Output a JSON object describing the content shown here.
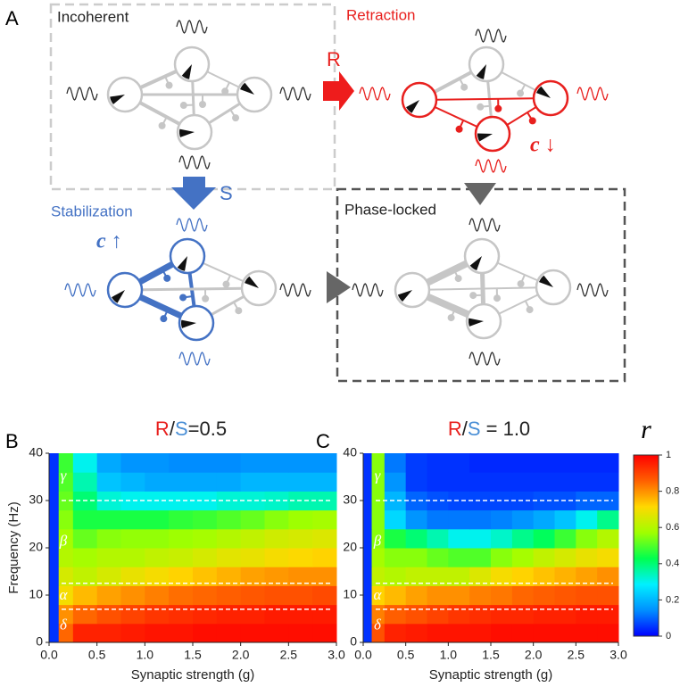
{
  "diagram": {
    "panel": "A",
    "states": [
      "Incoherent",
      "Retraction",
      "Stabilization",
      "Phase-locked"
    ],
    "arrows": [
      "R",
      "S"
    ],
    "coupling": [
      "c ↓",
      "c ↑"
    ]
  },
  "chart_data": [
    {
      "type": "heatmap",
      "panel": "B",
      "title_parts": [
        "R",
        "/",
        "S",
        "=0.5"
      ],
      "xlabel": "Synaptic strength (g)",
      "ylabel": "Frequency (Hz)",
      "xbins": [
        0,
        0.1,
        0.25,
        0.5,
        0.75,
        1.0,
        1.25,
        1.5,
        1.75,
        2.0,
        2.25,
        2.5,
        2.75,
        3.0
      ],
      "ybins": [
        0,
        4,
        8,
        12,
        16,
        20,
        24,
        28,
        32,
        36,
        40
      ],
      "values": [
        [
          0.05,
          0.85,
          0.95,
          0.95,
          0.96,
          0.97,
          0.97,
          0.98,
          0.98,
          0.98,
          0.98,
          0.98,
          0.98
        ],
        [
          0.05,
          0.8,
          0.85,
          0.88,
          0.9,
          0.92,
          0.93,
          0.94,
          0.95,
          0.95,
          0.96,
          0.96,
          0.96
        ],
        [
          0.05,
          0.7,
          0.75,
          0.78,
          0.8,
          0.82,
          0.84,
          0.85,
          0.86,
          0.87,
          0.88,
          0.88,
          0.89
        ],
        [
          0.05,
          0.65,
          0.62,
          0.65,
          0.68,
          0.7,
          0.72,
          0.74,
          0.76,
          0.78,
          0.79,
          0.8,
          0.8
        ],
        [
          0.05,
          0.6,
          0.58,
          0.6,
          0.6,
          0.62,
          0.63,
          0.65,
          0.67,
          0.68,
          0.7,
          0.71,
          0.72
        ],
        [
          0.05,
          0.58,
          0.52,
          0.55,
          0.56,
          0.56,
          0.57,
          0.58,
          0.6,
          0.62,
          0.64,
          0.65,
          0.66
        ],
        [
          0.05,
          0.55,
          0.45,
          0.45,
          0.45,
          0.45,
          0.47,
          0.48,
          0.5,
          0.52,
          0.55,
          0.57,
          0.58
        ],
        [
          0.05,
          0.52,
          0.4,
          0.32,
          0.3,
          0.3,
          0.3,
          0.3,
          0.32,
          0.32,
          0.33,
          0.35,
          0.35
        ],
        [
          0.05,
          0.5,
          0.35,
          0.22,
          0.2,
          0.18,
          0.18,
          0.18,
          0.18,
          0.2,
          0.2,
          0.2,
          0.2
        ],
        [
          0.05,
          0.48,
          0.3,
          0.18,
          0.15,
          0.15,
          0.14,
          0.14,
          0.14,
          0.15,
          0.15,
          0.15,
          0.15
        ]
      ],
      "xlim": [
        0,
        3.0
      ],
      "ylim": [
        0,
        40
      ],
      "xticks": [
        {
          "value": 0,
          "label": "0.0"
        },
        {
          "value": 0.5,
          "label": "0.5"
        },
        {
          "value": 1.0,
          "label": "1.0"
        },
        {
          "value": 1.5,
          "label": "1.5"
        },
        {
          "value": 2.0,
          "label": "2.0"
        },
        {
          "value": 2.5,
          "label": "2.5"
        },
        {
          "value": 3.0,
          "label": "3.0"
        }
      ],
      "yticks": [
        0,
        10,
        20,
        30,
        40
      ],
      "band_edges": [
        30,
        12.5,
        7
      ],
      "band_labels": [
        "γ",
        "β",
        "α",
        "δ"
      ]
    },
    {
      "type": "heatmap",
      "panel": "C",
      "title_parts": [
        "R",
        "/",
        "S",
        " = 1.0"
      ],
      "xlabel": "Synaptic strength (g)",
      "xbins": [
        0,
        0.1,
        0.25,
        0.5,
        0.75,
        1.0,
        1.25,
        1.5,
        1.75,
        2.0,
        2.25,
        2.5,
        2.75,
        3.0
      ],
      "ybins": [
        0,
        4,
        8,
        12,
        16,
        20,
        24,
        28,
        32,
        36,
        40
      ],
      "values": [
        [
          0.05,
          0.88,
          0.95,
          0.96,
          0.97,
          0.97,
          0.97,
          0.98,
          0.98,
          0.98,
          0.98,
          0.98,
          0.98
        ],
        [
          0.05,
          0.82,
          0.86,
          0.88,
          0.9,
          0.92,
          0.93,
          0.94,
          0.94,
          0.95,
          0.95,
          0.96,
          0.96
        ],
        [
          0.05,
          0.72,
          0.75,
          0.78,
          0.8,
          0.8,
          0.82,
          0.83,
          0.85,
          0.86,
          0.87,
          0.88,
          0.88
        ],
        [
          0.05,
          0.62,
          0.6,
          0.62,
          0.62,
          0.62,
          0.66,
          0.7,
          0.72,
          0.74,
          0.76,
          0.78,
          0.8
        ],
        [
          0.05,
          0.58,
          0.55,
          0.55,
          0.52,
          0.5,
          0.5,
          0.55,
          0.58,
          0.62,
          0.65,
          0.68,
          0.7
        ],
        [
          0.05,
          0.55,
          0.45,
          0.4,
          0.35,
          0.3,
          0.3,
          0.33,
          0.38,
          0.42,
          0.48,
          0.55,
          0.6
        ],
        [
          0.05,
          0.55,
          0.25,
          0.15,
          0.12,
          0.12,
          0.12,
          0.13,
          0.15,
          0.18,
          0.22,
          0.3,
          0.38
        ],
        [
          0.05,
          0.55,
          0.2,
          0.1,
          0.08,
          0.07,
          0.07,
          0.07,
          0.07,
          0.08,
          0.08,
          0.1,
          0.1
        ],
        [
          0.05,
          0.55,
          0.15,
          0.06,
          0.05,
          0.05,
          0.05,
          0.05,
          0.05,
          0.05,
          0.05,
          0.05,
          0.05
        ],
        [
          0.05,
          0.55,
          0.12,
          0.06,
          0.05,
          0.05,
          0.04,
          0.04,
          0.04,
          0.04,
          0.04,
          0.04,
          0.04
        ]
      ],
      "xlim": [
        0,
        3.0
      ],
      "ylim": [
        0,
        40
      ],
      "xticks": [
        {
          "value": 0,
          "label": "0.0"
        },
        {
          "value": 0.5,
          "label": "0.5"
        },
        {
          "value": 1.0,
          "label": "1.0"
        },
        {
          "value": 1.5,
          "label": "1.5"
        },
        {
          "value": 2.0,
          "label": "2.0"
        },
        {
          "value": 2.5,
          "label": "2.5"
        },
        {
          "value": 3.0,
          "label": "3.0"
        }
      ],
      "yticks": [
        0,
        10,
        20,
        30,
        40
      ],
      "band_edges": [
        30,
        12.5,
        7
      ],
      "band_labels": [
        "γ",
        "β",
        "α",
        "δ"
      ]
    }
  ],
  "colorbar": {
    "label": "r",
    "clim": [
      0,
      1
    ],
    "ticks": [
      0,
      0.2,
      0.4,
      0.6,
      0.8,
      1
    ],
    "colormap": [
      "#0000ff",
      "#0090ff",
      "#00f0ff",
      "#00ff50",
      "#a0ff00",
      "#ffd800",
      "#ff6000",
      "#ff0000"
    ]
  }
}
